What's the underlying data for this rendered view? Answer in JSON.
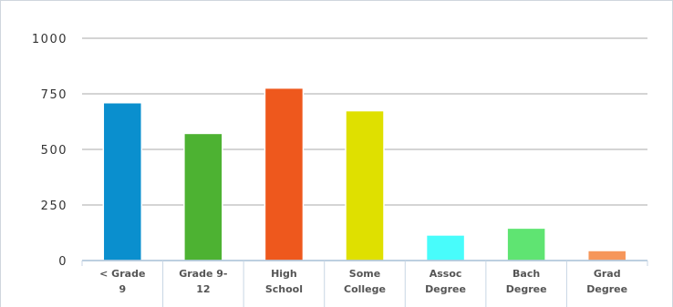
{
  "chart_data": {
    "type": "bar",
    "categories": [
      [
        "< Grade",
        "9"
      ],
      [
        "Grade 9-",
        "12"
      ],
      [
        "High",
        "School"
      ],
      [
        "Some",
        "College"
      ],
      [
        "Assoc",
        "Degree"
      ],
      [
        "Bach",
        "Degree"
      ],
      [
        "Grad",
        "Degree"
      ]
    ],
    "values": [
      710,
      572,
      776,
      674,
      115,
      146,
      45
    ],
    "colors": [
      "#0a8fce",
      "#4db232",
      "#ee581d",
      "#dfe000",
      "#48fcfb",
      "#5fe472",
      "#f6965a"
    ],
    "yticks": [
      "0",
      "250",
      "500",
      "750",
      "1000"
    ],
    "ylim": [
      0,
      1000
    ],
    "grid": true,
    "title": "",
    "xlabel": "",
    "ylabel": ""
  }
}
